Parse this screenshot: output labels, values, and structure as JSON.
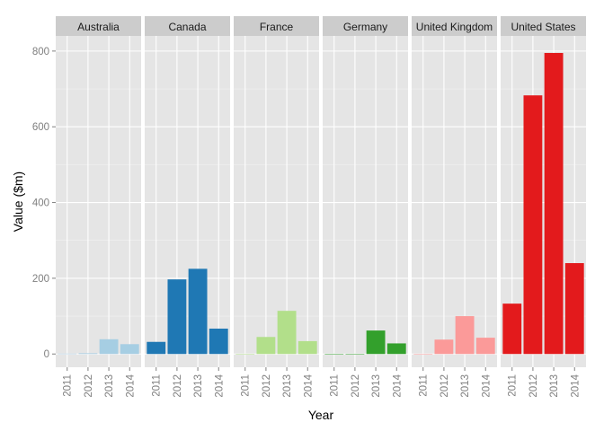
{
  "chart_data": {
    "type": "bar",
    "layout": "faceted",
    "xlabel": "Year",
    "ylabel": "Value ($m)",
    "ylim": [
      -35,
      840
    ],
    "y_ticks": [
      0,
      200,
      400,
      600,
      800
    ],
    "categories": [
      "2011",
      "2012",
      "2013",
      "2014"
    ],
    "grid": true,
    "legend": "none",
    "panel_background": "#e5e5e5",
    "strip_background": "#cccccc",
    "facets": [
      {
        "name": "Australia",
        "color": "#a6cee3",
        "values": [
          1,
          2,
          39,
          26
        ]
      },
      {
        "name": "Canada",
        "color": "#1f78b4",
        "values": [
          32,
          197,
          225,
          67
        ]
      },
      {
        "name": "France",
        "color": "#b2df8a",
        "values": [
          0,
          45,
          114,
          34
        ]
      },
      {
        "name": "Germany",
        "color": "#33a02c",
        "values": [
          0,
          0,
          62,
          28
        ]
      },
      {
        "name": "United Kingdom",
        "color": "#fb9a99",
        "values": [
          0,
          38,
          100,
          43
        ]
      },
      {
        "name": "United States",
        "color": "#e31a1c",
        "values": [
          133,
          683,
          795,
          240
        ]
      }
    ]
  }
}
